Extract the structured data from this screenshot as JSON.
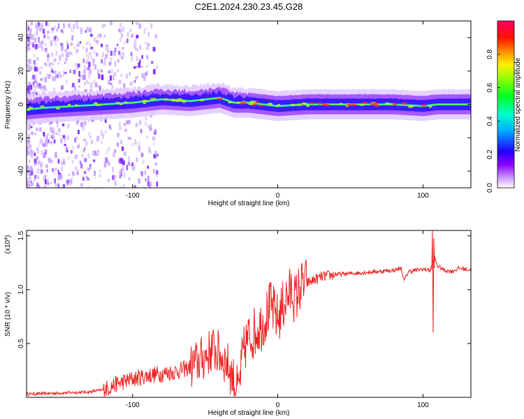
{
  "title": "C2E1.2024.230.23.45.G28",
  "chart_data": [
    {
      "type": "heatmap",
      "xlabel": "Height of straight line (km)",
      "ylabel": "Frequency (Hz)",
      "xlim": [
        -173,
        133
      ],
      "ylim": [
        -50,
        50
      ],
      "xticks": [
        -100,
        0,
        100
      ],
      "xtick_labels": [
        "-100",
        "0",
        "100"
      ],
      "yticks": [
        -40,
        -20,
        0,
        20,
        40
      ],
      "ytick_labels": [
        "-40",
        "-20",
        "0",
        "20",
        "40"
      ],
      "colorbar": {
        "label": "Normalized spectral amplitude",
        "range": [
          0,
          1
        ],
        "ticks": [
          0.0,
          0.2,
          0.4,
          0.6,
          0.8
        ],
        "tick_labels": [
          "0.0",
          "0.2",
          "0.4",
          "0.6",
          "0.8"
        ],
        "colors": [
          "#ffffff",
          "#8800ff",
          "#0000ff",
          "#00ccff",
          "#00ff66",
          "#aaff00",
          "#ffcc00",
          "#ff0000",
          "#ff0066"
        ]
      },
      "ridge": {
        "x": [
          -173,
          -160,
          -140,
          -120,
          -100,
          -80,
          -60,
          -40,
          -30,
          -20,
          -10,
          0,
          20,
          40,
          60,
          80,
          100,
          110,
          120,
          133
        ],
        "y": [
          -3,
          -2,
          -1,
          0,
          1,
          3,
          2,
          4,
          1,
          1,
          0,
          -1,
          0,
          0,
          0,
          0,
          -1,
          0,
          0,
          0
        ]
      }
    },
    {
      "type": "line",
      "xlabel": "Height of straight line (km)",
      "ylabel": "SNR (10 * v/v)",
      "scale_label": "(x10",
      "scale_exponent": "4",
      "xlim": [
        -173,
        133
      ],
      "ylim": [
        0,
        1.55
      ],
      "xticks": [
        -100,
        0,
        100
      ],
      "xtick_labels": [
        "-100",
        "0",
        "100"
      ],
      "yticks": [
        0.5,
        1.0,
        1.5
      ],
      "ytick_labels": [
        "0.5",
        "1.0",
        "1.5"
      ],
      "series": [
        {
          "name": "SNR",
          "color": "#ee2222",
          "x": [
            -173,
            -150,
            -130,
            -120,
            -110,
            -100,
            -90,
            -80,
            -70,
            -60,
            -50,
            -45,
            -40,
            -35,
            -30,
            -27,
            -25,
            -22,
            -20,
            -15,
            -10,
            -5,
            0,
            5,
            10,
            12,
            15,
            20,
            25,
            30,
            40,
            50,
            60,
            70,
            80,
            85,
            87,
            90,
            100,
            105,
            108,
            110,
            115,
            120,
            125,
            133
          ],
          "y": [
            0.03,
            0.04,
            0.05,
            0.07,
            0.13,
            0.17,
            0.2,
            0.22,
            0.24,
            0.28,
            0.38,
            0.45,
            0.4,
            0.32,
            0.15,
            0.05,
            0.3,
            0.5,
            0.55,
            0.62,
            0.7,
            0.85,
            0.72,
            0.9,
            1.0,
            0.9,
            1.02,
            1.06,
            1.09,
            1.12,
            1.14,
            1.15,
            1.16,
            1.17,
            1.18,
            1.2,
            1.08,
            1.17,
            1.19,
            1.18,
            1.3,
            1.22,
            1.18,
            1.17,
            1.2,
            1.18
          ]
        }
      ]
    }
  ]
}
